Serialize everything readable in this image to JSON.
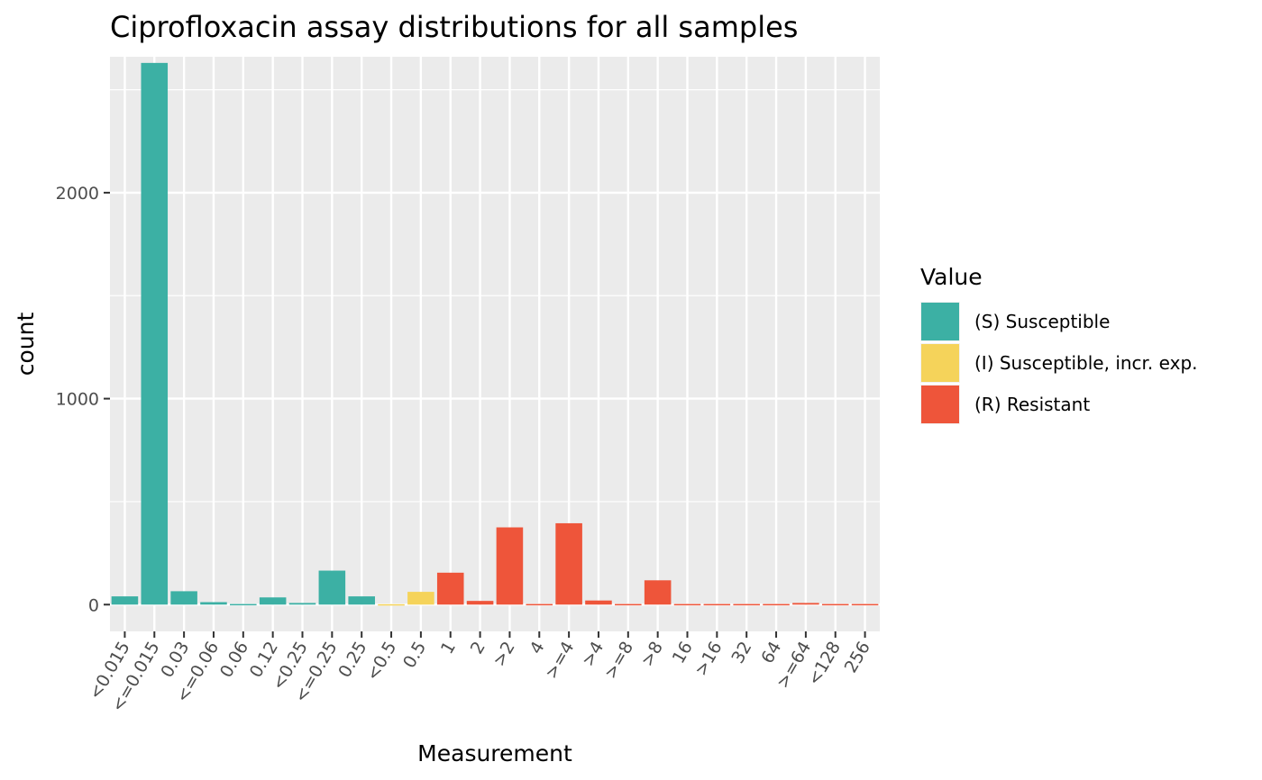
{
  "chart_data": {
    "type": "bar",
    "title": "Ciprofloxacin assay distributions for all samples",
    "xlabel": "Measurement",
    "ylabel": "count",
    "ylim": [
      -130,
      2660
    ],
    "yticks": [
      0,
      1000,
      2000
    ],
    "grid": true,
    "legend_placement": "right",
    "legend_title": "Value",
    "categories": [
      "<0.015",
      "<=0.015",
      "0.03",
      "<=0.06",
      "0.06",
      "0.12",
      "<0.25",
      "<=0.25",
      "0.25",
      "<0.5",
      "0.5",
      "1",
      "2",
      ">2",
      "4",
      ">=4",
      ">4",
      ">=8",
      ">8",
      "16",
      ">16",
      "32",
      "64",
      ">=64",
      "<128",
      "256"
    ],
    "series": [
      {
        "name": "(S) Susceptible",
        "color": "#3cb0a4",
        "values": [
          40,
          2630,
          65,
          12,
          3,
          35,
          8,
          165,
          40,
          0,
          0,
          0,
          0,
          0,
          0,
          0,
          0,
          0,
          0,
          0,
          0,
          0,
          0,
          0,
          0,
          0
        ]
      },
      {
        "name": "(I) Susceptible, incr. exp.",
        "color": "#f5d35a",
        "values": [
          0,
          0,
          0,
          0,
          0,
          0,
          0,
          0,
          0,
          2,
          62,
          0,
          0,
          0,
          0,
          0,
          0,
          0,
          0,
          0,
          0,
          0,
          0,
          0,
          0,
          0
        ]
      },
      {
        "name": "(R) Resistant",
        "color": "#ee553a",
        "values": [
          0,
          0,
          0,
          0,
          0,
          0,
          0,
          0,
          0,
          0,
          0,
          155,
          18,
          375,
          3,
          395,
          20,
          3,
          118,
          3,
          3,
          3,
          3,
          8,
          3,
          3
        ]
      }
    ]
  }
}
